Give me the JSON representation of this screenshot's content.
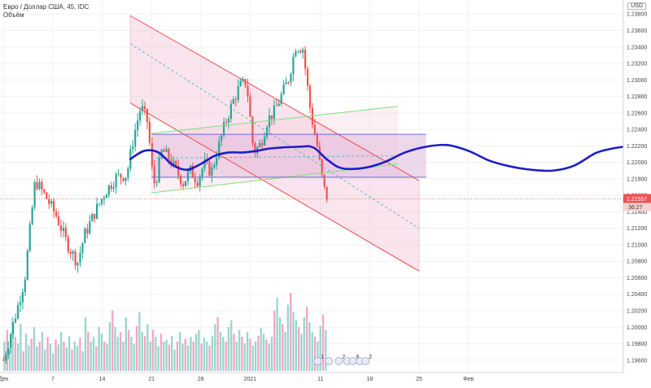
{
  "legend": {
    "symbol_line": "Евро / Доллар США, 45, IDC",
    "volume_label": "Объём"
  },
  "currency": "USD",
  "chart_data": {
    "type": "candlestick",
    "price_axis": {
      "ticks": [
        "1.23800",
        "1.23600",
        "1.23400",
        "1.23200",
        "1.23000",
        "1.22800",
        "1.22600",
        "1.22400",
        "1.22200",
        "1.22000",
        "1.21800",
        "1.21600",
        "1.21400",
        "1.21200",
        "1.21000",
        "1.20800",
        "1.20600",
        "1.20400",
        "1.20200",
        "1.20000",
        "1.19800",
        "1.19600"
      ],
      "ylim": [
        1.1945,
        1.2397
      ]
    },
    "time_axis": {
      "ticks": [
        {
          "label": "Дек",
          "day": 0
        },
        {
          "label": "7",
          "day": 7
        },
        {
          "label": "14",
          "day": 14
        },
        {
          "label": "21",
          "day": 21
        },
        {
          "label": "28",
          "day": 28
        },
        {
          "label": "2021",
          "day": 35
        },
        {
          "label": "11",
          "day": 45
        },
        {
          "label": "18",
          "day": 52
        },
        {
          "label": "25",
          "day": 59
        },
        {
          "label": "Фев",
          "day": 66
        }
      ],
      "xlim": [
        -0.5,
        88
      ]
    },
    "last_price": {
      "value": 1.21557,
      "label": "1.21557",
      "countdown": "36:27"
    },
    "close_path": [
      [
        0,
        1.196
      ],
      [
        1.5,
        1.2008
      ],
      [
        3,
        1.2058
      ],
      [
        4.5,
        1.2178
      ],
      [
        6,
        1.2158
      ],
      [
        7.5,
        1.2135
      ],
      [
        9,
        1.2102
      ],
      [
        10.5,
        1.2078
      ],
      [
        11.5,
        1.2112
      ],
      [
        13,
        1.214
      ],
      [
        14.5,
        1.2165
      ],
      [
        16,
        1.2182
      ],
      [
        17.5,
        1.2185
      ],
      [
        18.5,
        1.2232
      ],
      [
        19.5,
        1.2268
      ],
      [
        20.5,
        1.2248
      ],
      [
        21,
        1.2195
      ],
      [
        21.5,
        1.2172
      ],
      [
        22.5,
        1.2215
      ],
      [
        23.5,
        1.2205
      ],
      [
        24.5,
        1.219
      ],
      [
        25.5,
        1.2175
      ],
      [
        26.5,
        1.219
      ],
      [
        27.5,
        1.2178
      ],
      [
        28.5,
        1.2198
      ],
      [
        29.5,
        1.2188
      ],
      [
        30.5,
        1.2218
      ],
      [
        31.5,
        1.2248
      ],
      [
        32.5,
        1.2272
      ],
      [
        33.5,
        1.2292
      ],
      [
        34.5,
        1.2298
      ],
      [
        35.5,
        1.2212
      ],
      [
        36.5,
        1.2222
      ],
      [
        37.5,
        1.2252
      ],
      [
        38.5,
        1.2262
      ],
      [
        39.5,
        1.2282
      ],
      [
        40.5,
        1.2302
      ],
      [
        41.5,
        1.2342
      ],
      [
        42.5,
        1.2338
      ],
      [
        43.5,
        1.2268
      ],
      [
        44,
        1.2242
      ],
      [
        44.5,
        1.2222
      ],
      [
        45,
        1.2192
      ],
      [
        45.5,
        1.2168
      ],
      [
        46,
        1.2156
      ]
    ],
    "forecast_curve": [
      [
        18,
        1.2204
      ],
      [
        20,
        1.2214
      ],
      [
        22,
        1.2212
      ],
      [
        24,
        1.2197
      ],
      [
        26,
        1.2191
      ],
      [
        28,
        1.2198
      ],
      [
        30,
        1.2208
      ],
      [
        32,
        1.2212
      ],
      [
        34,
        1.2212
      ],
      [
        36,
        1.2214
      ],
      [
        38,
        1.2217
      ],
      [
        42,
        1.2219
      ],
      [
        44,
        1.2218
      ],
      [
        46,
        1.2203
      ],
      [
        48,
        1.2193
      ],
      [
        51,
        1.2193
      ],
      [
        54,
        1.22
      ],
      [
        57,
        1.2212
      ],
      [
        60,
        1.2219
      ],
      [
        63,
        1.2221
      ],
      [
        66,
        1.2214
      ],
      [
        69,
        1.2202
      ],
      [
        72,
        1.2195
      ],
      [
        75,
        1.2191
      ],
      [
        78,
        1.219
      ],
      [
        81,
        1.2196
      ],
      [
        84,
        1.2211
      ],
      [
        86,
        1.2216
      ],
      [
        88,
        1.2219
      ]
    ],
    "volume": [
      0.3,
      0.42,
      0.22,
      0.55,
      0.35,
      0.28,
      0.48,
      0.2,
      0.38,
      0.26,
      0.33,
      0.45,
      0.25,
      0.3,
      0.4,
      0.22,
      0.35,
      0.28,
      0.18,
      0.32,
      0.27,
      0.4,
      0.3,
      0.24,
      0.36,
      0.22,
      0.3,
      0.26,
      0.34,
      0.2,
      0.55,
      0.4,
      0.3,
      0.35,
      0.25,
      0.45,
      0.38,
      0.3,
      0.28,
      0.5,
      0.62,
      0.45,
      0.35,
      0.4,
      0.3,
      0.55,
      0.42,
      0.35,
      0.28,
      0.46,
      0.6,
      0.4,
      0.36,
      0.48,
      0.3,
      0.42,
      0.35,
      0.25,
      0.38,
      0.3,
      0.32,
      0.27,
      0.36,
      0.22,
      0.3,
      0.4,
      0.28,
      0.33,
      0.26,
      0.35,
      0.3,
      0.38,
      0.42,
      0.28,
      0.34,
      0.3,
      0.26,
      0.36,
      0.48,
      0.55,
      0.4,
      0.35,
      0.3,
      0.45,
      0.52,
      0.38,
      0.3,
      0.42,
      0.35,
      0.28,
      0.4,
      0.33,
      0.26,
      0.3,
      0.36,
      0.44,
      0.38,
      0.32,
      0.28,
      0.35,
      0.62,
      0.75,
      0.55,
      0.48,
      0.4,
      0.68,
      0.8,
      0.6,
      0.52,
      0.45,
      0.38,
      0.55,
      0.66,
      0.5,
      0.4,
      0.35,
      0.3,
      0.46,
      0.58,
      0.42
    ],
    "drawings": {
      "falling_channel": {
        "upper": [
          [
            18,
            1.2378
          ],
          [
            59,
            1.2178
          ]
        ],
        "mid": [
          [
            18,
            1.2344
          ],
          [
            59,
            1.212
          ]
        ],
        "lower": [
          [
            18,
            1.2272
          ],
          [
            59,
            1.2068
          ]
        ],
        "band_x": [
          18,
          59
        ]
      },
      "rising_channel": {
        "upper": [
          [
            21,
            1.2235
          ],
          [
            56,
            1.2268
          ]
        ],
        "mid": [
          [
            21,
            1.2205
          ],
          [
            56,
            1.2208
          ]
        ],
        "lower": [
          [
            21,
            1.2163
          ],
          [
            56,
            1.2198
          ]
        ]
      },
      "range_box": {
        "x": [
          21,
          60
        ],
        "top": 1.2234,
        "bottom": 1.2182
      }
    },
    "event_markers": [
      {
        "day": 44.6,
        "label": "1"
      },
      {
        "day": 46.2,
        "label": ""
      },
      {
        "day": 47.6,
        "label": "2"
      },
      {
        "day": 48.8,
        "label": ""
      },
      {
        "day": 49.6,
        "label": "6"
      },
      {
        "day": 50.6,
        "label": ""
      },
      {
        "day": 51.4,
        "label": "2"
      }
    ],
    "colors": {
      "up": "#26a69a",
      "down": "#ef5350",
      "vol_up": "#80cbc4",
      "vol_down": "#f48fb1",
      "forecast": "#1d1dc8",
      "channel_red": "#f24b4b",
      "channel_band": "#f3c4d9",
      "channel_mid": "#5cb8c8",
      "channel_green": "#7ee07a",
      "box_line": "#6b6bd6",
      "box_fill": "#dcb9dc",
      "last_price": "#ef5350",
      "grid": "#f1f1f1",
      "axis_text": "#444"
    }
  }
}
